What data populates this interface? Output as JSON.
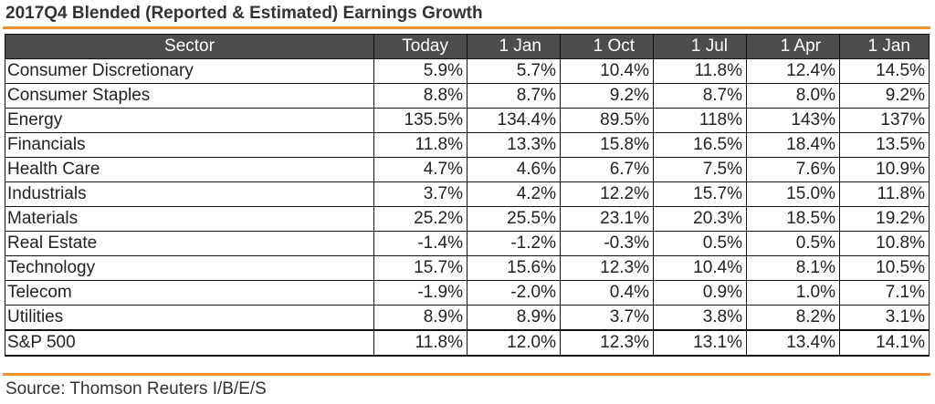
{
  "title": "2017Q4 Blended (Reported & Estimated) Earnings Growth",
  "table": {
    "headers": [
      "Sector",
      "Today",
      "1 Jan",
      "1 Oct",
      "1 Jul",
      "1 Apr",
      "1 Jan"
    ],
    "rows": [
      {
        "sector": "Consumer Discretionary",
        "values": [
          "5.9%",
          "5.7%",
          "10.4%",
          "11.8%",
          "12.4%",
          "14.5%"
        ]
      },
      {
        "sector": "Consumer Staples",
        "values": [
          "8.8%",
          "8.7%",
          "9.2%",
          "8.7%",
          "8.0%",
          "9.2%"
        ]
      },
      {
        "sector": "Energy",
        "values": [
          "135.5%",
          "134.4%",
          "89.5%",
          "118%",
          "143%",
          "137%"
        ]
      },
      {
        "sector": "Financials",
        "values": [
          "11.8%",
          "13.3%",
          "15.8%",
          "16.5%",
          "18.4%",
          "13.5%"
        ]
      },
      {
        "sector": "Health Care",
        "values": [
          "4.7%",
          "4.6%",
          "6.7%",
          "7.5%",
          "7.6%",
          "10.9%"
        ]
      },
      {
        "sector": "Industrials",
        "values": [
          "3.7%",
          "4.2%",
          "12.2%",
          "15.7%",
          "15.0%",
          "11.8%"
        ]
      },
      {
        "sector": "Materials",
        "values": [
          "25.2%",
          "25.5%",
          "23.1%",
          "20.3%",
          "18.5%",
          "19.2%"
        ]
      },
      {
        "sector": "Real Estate",
        "values": [
          "-1.4%",
          "-1.2%",
          "-0.3%",
          "0.5%",
          "0.5%",
          "10.8%"
        ]
      },
      {
        "sector": "Technology",
        "values": [
          "15.7%",
          "15.6%",
          "12.3%",
          "10.4%",
          "8.1%",
          "10.5%"
        ]
      },
      {
        "sector": "Telecom",
        "values": [
          "-1.9%",
          "-2.0%",
          "0.4%",
          "0.9%",
          "1.0%",
          "7.1%"
        ]
      },
      {
        "sector": "Utilities",
        "values": [
          "8.9%",
          "8.9%",
          "3.7%",
          "3.8%",
          "8.2%",
          "3.1%"
        ]
      }
    ],
    "total": {
      "sector": "S&P 500",
      "values": [
        "11.8%",
        "12.0%",
        "12.3%",
        "13.1%",
        "13.4%",
        "14.1%"
      ]
    }
  },
  "source": "Source: Thomson Reuters I/B/E/S",
  "colors": {
    "accent_rule": "#f0902a",
    "header_bg": "#4d4d4d",
    "header_text": "#ffffff"
  }
}
